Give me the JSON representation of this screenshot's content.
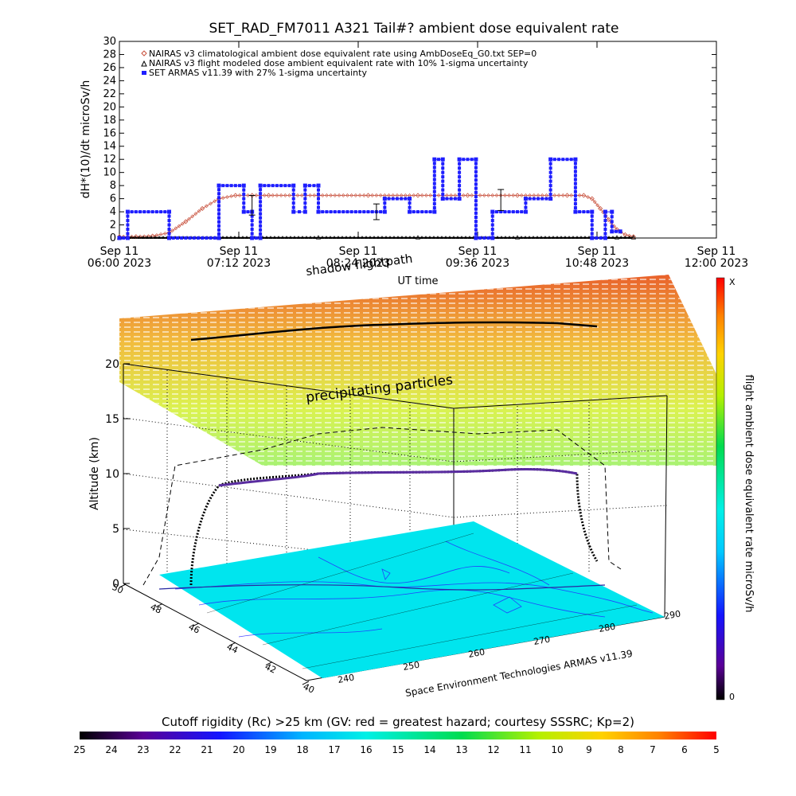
{
  "colors": {
    "climatology": "#c8503c",
    "modeled": "#000000",
    "armas": "#1e1eff",
    "map": "#00e5ee",
    "map_detail": "#2828ff"
  },
  "chart_data": [
    {
      "type": "line",
      "title": "SET_RAD_FM7011  A321 Tail#? ambient dose equivalent rate",
      "xlabel": "UT time",
      "ylabel": "dH*(10)/dt microSv/h",
      "ylim": [
        0,
        30
      ],
      "yticks": [
        "0",
        "2",
        "4",
        "6",
        "8",
        "10",
        "12",
        "14",
        "16",
        "18",
        "20",
        "22",
        "24",
        "26",
        "28",
        "30"
      ],
      "x_domain": [
        "2023-09-11T06:00",
        "2023-09-11T12:00"
      ],
      "xticks": [
        {
          "top": "Sep 11",
          "bottom": "06:00 2023"
        },
        {
          "top": "Sep 11",
          "bottom": "07:12 2023"
        },
        {
          "top": "Sep 11",
          "bottom": "08:24 2023"
        },
        {
          "top": "Sep 11",
          "bottom": "09:36 2023"
        },
        {
          "top": "Sep 11",
          "bottom": "10:48 2023"
        },
        {
          "top": "Sep 11",
          "bottom": "12:00 2023"
        }
      ],
      "legend": {
        "position": "top-left",
        "entries": [
          "NAIRAS v3 climatological ambient dose equivalent rate using AmbDoseEq_G0.txt SEP=0",
          "NAIRAS v3 flight modeled dose ambient equivalent rate with 10% 1-sigma uncertainty",
          "SET ARMAS v11.39 with 27% 1-sigma uncertainty"
        ]
      },
      "series": [
        {
          "name": "NAIRAS v3 climatological ambient dose equivalent rate using AmbDoseEq_G0.txt SEP=0",
          "marker": "diamond",
          "x": [
            "06:00",
            "06:10",
            "06:20",
            "06:30",
            "06:40",
            "06:50",
            "07:00",
            "07:10",
            "07:20",
            "07:30",
            "08:00",
            "08:30",
            "09:00",
            "09:30",
            "10:00",
            "10:30",
            "10:40",
            "10:45",
            "10:50",
            "10:55",
            "11:00",
            "11:05",
            "11:10"
          ],
          "y": [
            0.2,
            0.2,
            0.3,
            0.8,
            2.5,
            4.5,
            6.0,
            6.5,
            6.5,
            6.5,
            6.5,
            6.5,
            6.5,
            6.5,
            6.5,
            6.5,
            6.5,
            6.0,
            4.5,
            2.8,
            1.3,
            0.5,
            0.2
          ]
        },
        {
          "name": "NAIRAS v3 flight modeled dose ambient equivalent rate with 10% 1-sigma uncertainty",
          "marker": "triangle",
          "x": [
            "06:00",
            "07:00",
            "08:00",
            "09:00",
            "10:00",
            "11:00",
            "11:10"
          ],
          "y": [
            0.1,
            0.1,
            0.1,
            0.1,
            0.1,
            0.1,
            0.1
          ]
        },
        {
          "name": "SET ARMAS v11.39 with 27% 1-sigma uncertainty",
          "marker": "square",
          "x": [
            "06:00",
            "06:05",
            "06:05",
            "06:30",
            "06:30",
            "07:00",
            "07:00",
            "07:15",
            "07:15",
            "07:20",
            "07:20",
            "07:25",
            "07:25",
            "07:45",
            "07:45",
            "07:52",
            "07:52",
            "08:00",
            "08:00",
            "08:40",
            "08:40",
            "08:55",
            "08:55",
            "09:10",
            "09:10",
            "09:15",
            "09:15",
            "09:25",
            "09:25",
            "09:35",
            "09:35",
            "09:45",
            "09:45",
            "10:05",
            "10:05",
            "10:20",
            "10:20",
            "10:35",
            "10:35",
            "10:45",
            "10:45",
            "10:53",
            "10:53",
            "10:57",
            "10:57",
            "11:02"
          ],
          "y": [
            0,
            0,
            4,
            4,
            0,
            0,
            8,
            8,
            4,
            4,
            0,
            0,
            8,
            8,
            4,
            4,
            8,
            8,
            4,
            4,
            6,
            6,
            4,
            4,
            12,
            12,
            6,
            6,
            12,
            12,
            0,
            0,
            4,
            4,
            6,
            6,
            12,
            12,
            4,
            4,
            0,
            0,
            4,
            4,
            1,
            1
          ]
        }
      ],
      "error_bars": [
        {
          "x": "07:20",
          "y": 5.0,
          "err": 1.5
        },
        {
          "x": "08:35",
          "y": 4.0,
          "err": 1.2
        },
        {
          "x": "09:50",
          "y": 5.8,
          "err": 1.6
        }
      ]
    },
    {
      "type": "scatter",
      "title": "flight ambient dose equivalent rate microSv/h",
      "zlabel": "Altitude (km)",
      "zticks": [
        "0",
        "5",
        "10",
        "15",
        "20"
      ],
      "lat_ticks": [
        "50",
        "48",
        "46",
        "44",
        "42",
        "40"
      ],
      "lon_ticks": [
        "240",
        "250",
        "260",
        "270",
        "280",
        "290"
      ],
      "annotations": [
        "precipitating particles",
        "shadow flightpath",
        "flightpath"
      ],
      "credit": "Space Environment Technologies ARMAS v11.39",
      "flight_track": {
        "lon": [
          241,
          243,
          245,
          250,
          255,
          260,
          265,
          270,
          275,
          280,
          285
        ],
        "lat": [
          48,
          48,
          47.8,
          47.5,
          46.5,
          45,
          44,
          43.5,
          43,
          42.5,
          42
        ],
        "alt_km": [
          0,
          6,
          10,
          10.5,
          10.7,
          11,
          11.2,
          11.3,
          11.2,
          11,
          0
        ]
      },
      "colorbar": {
        "label": "flight ambient dose equivalent rate microSv/h",
        "min": "0",
        "max": "X"
      }
    }
  ],
  "cutoff_bar": {
    "title": "Cutoff rigidity (Rc) >25 km (GV: red = greatest hazard; courtesy SSSRC; Kp=2)",
    "labels": [
      "25",
      "24",
      "23",
      "22",
      "21",
      "20",
      "19",
      "18",
      "17",
      "16",
      "15",
      "14",
      "13",
      "12",
      "11",
      "10",
      "9",
      "8",
      "7",
      "6",
      "5"
    ]
  }
}
